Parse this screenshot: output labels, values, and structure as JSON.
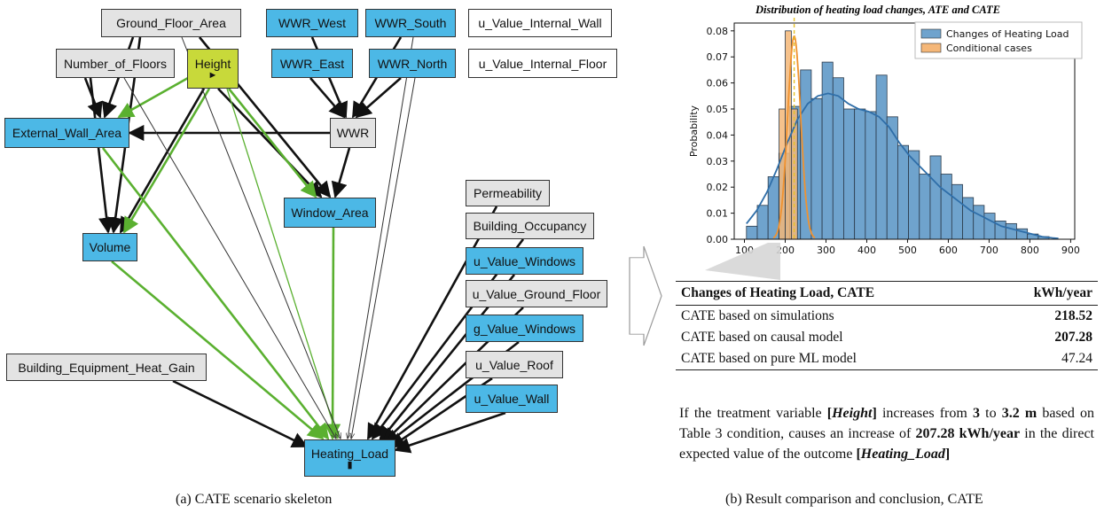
{
  "diagram": {
    "nodes": {
      "ground_floor_area": "Ground_Floor_Area",
      "wwr_west": "WWR_West",
      "wwr_south": "WWR_South",
      "u_value_internal_wall": "u_Value_Internal_Wall",
      "number_of_floors": "Number_of_Floors",
      "height": "Height",
      "wwr_east": "WWR_East",
      "wwr_north": "WWR_North",
      "u_value_internal_floor": "u_Value_Internal_Floor",
      "external_wall_area": "External_Wall_Area",
      "wwr": "WWR",
      "permeability": "Permeability",
      "window_area": "Window_Area",
      "building_occupancy": "Building_Occupancy",
      "volume": "Volume",
      "u_value_windows": "u_Value_Windows",
      "u_value_ground_floor": "u_Value_Ground_Floor",
      "g_value_windows": "g_Value_Windows",
      "building_equipment_heat_gain": "Building_Equipment_Heat_Gain",
      "u_value_roof": "u_Value_Roof",
      "u_value_wall": "u_Value_Wall",
      "heating_load": "Heating_Load"
    },
    "height_marker": "►",
    "heating_marker": "▮",
    "colors": {
      "blue": "#4cb8e6",
      "gray": "#e3e3e3",
      "yellow": "#c8d93a",
      "green_edge": "#5ab030",
      "black_edge": "#111111"
    }
  },
  "captions": {
    "left": "(a) CATE scenario skeleton",
    "right": "(b) Result comparison and conclusion, CATE"
  },
  "chart_data": {
    "type": "bar",
    "title": "Distribution of heating load changes, ATE and CATE",
    "xlabel": "",
    "ylabel": "Probability",
    "xlim": [
      75,
      910
    ],
    "ylim": [
      0,
      0.083
    ],
    "xticks": [
      100,
      200,
      300,
      400,
      500,
      600,
      700,
      800,
      900
    ],
    "yticks": [
      0.0,
      0.01,
      0.02,
      0.03,
      0.04,
      0.05,
      0.06,
      0.07,
      0.08
    ],
    "legend_position": "top-right",
    "series": [
      {
        "name": "Changes of Heating Load",
        "color": "#6fa3cd",
        "bin_start": 105,
        "bin_width": 26.5,
        "values": [
          0.005,
          0.013,
          0.024,
          0.033,
          0.051,
          0.065,
          0.054,
          0.068,
          0.062,
          0.05,
          0.05,
          0.049,
          0.063,
          0.047,
          0.036,
          0.034,
          0.025,
          0.032,
          0.025,
          0.021,
          0.016,
          0.013,
          0.01,
          0.007,
          0.006,
          0.004,
          0.002,
          0.001
        ]
      },
      {
        "name": "Conditional cases",
        "color": "#f5b778",
        "bins": [
          [
            185,
            200
          ],
          [
            200,
            215
          ],
          [
            215,
            230
          ]
        ],
        "values": [
          0.05,
          0.08,
          0.05
        ],
        "line": {
          "mean": 222,
          "peak": 0.078,
          "spread": 16
        }
      }
    ],
    "kde": {
      "x": [
        105,
        130,
        155,
        180,
        205,
        230,
        255,
        280,
        305,
        330,
        355,
        380,
        405,
        430,
        455,
        480,
        505,
        530,
        555,
        580,
        605,
        630,
        655,
        680,
        705,
        730,
        755,
        780,
        805,
        830,
        855,
        870
      ],
      "y": [
        0.006,
        0.011,
        0.018,
        0.027,
        0.037,
        0.046,
        0.052,
        0.055,
        0.056,
        0.055,
        0.052,
        0.05,
        0.049,
        0.047,
        0.043,
        0.037,
        0.032,
        0.028,
        0.024,
        0.02,
        0.017,
        0.014,
        0.011,
        0.009,
        0.007,
        0.005,
        0.004,
        0.003,
        0.002,
        0.001,
        0.0005,
        0.0003
      ]
    },
    "dashed_line_x": 222
  },
  "table": {
    "header": {
      "label": "Changes of Heating Load, CATE",
      "unit": "kWh/year"
    },
    "rows": [
      {
        "label": "CATE based on simulations",
        "value": "218.52",
        "bold": true
      },
      {
        "label": "CATE based on causal model",
        "value": "207.28",
        "bold": true
      },
      {
        "label": "CATE based on pure ML model",
        "value": "47.24",
        "bold": false
      }
    ]
  },
  "conclusion": {
    "t1": "If the treatment variable ",
    "treatment": "Height",
    "t2": " increases from ",
    "from_value": "3",
    "t3": " to ",
    "to_value": "3.2 m",
    "t4": " based on Table 3 condition, causes an increase of ",
    "effect": "207.28 kWh/year",
    "t5": " in the direct expected value of the outcome ",
    "outcome": "Heating_Load"
  }
}
